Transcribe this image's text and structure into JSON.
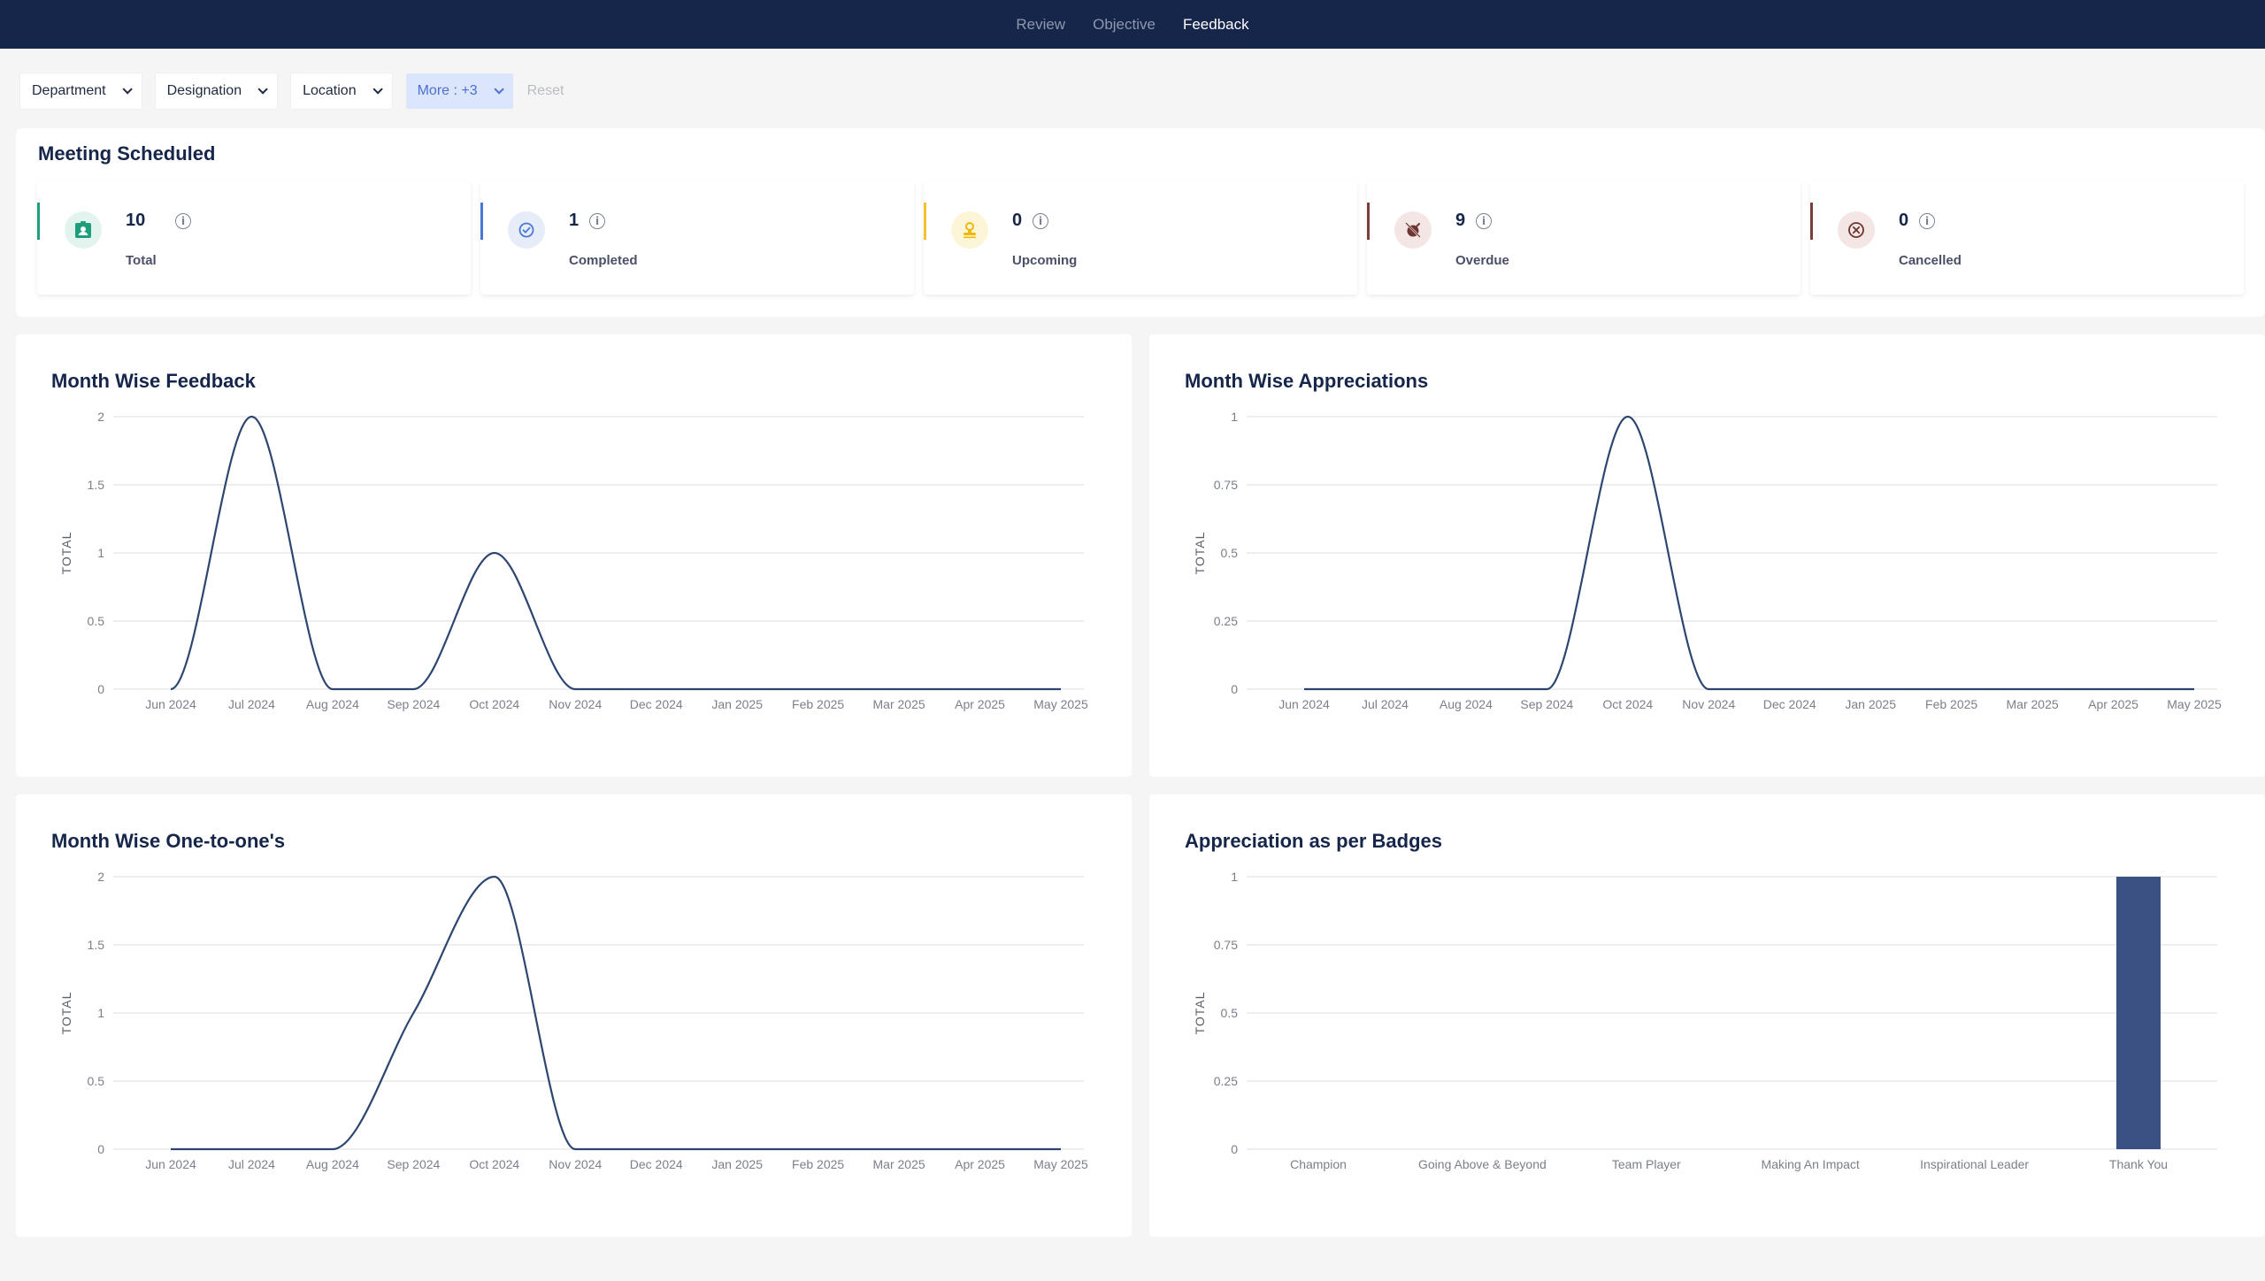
{
  "nav": {
    "tabs": [
      {
        "label": "Review"
      },
      {
        "label": "Objective"
      },
      {
        "label": "Feedback"
      }
    ],
    "active": "Feedback"
  },
  "filters": {
    "department": "Department",
    "designation": "Designation",
    "location": "Location",
    "more": "More : +3",
    "reset": "Reset"
  },
  "meeting": {
    "title": "Meeting Scheduled",
    "stats": [
      {
        "value": "10",
        "label": "Total",
        "color": "#1e9e7a",
        "icon": "user-badge-icon"
      },
      {
        "value": "1",
        "label": "Completed",
        "color": "#4a78d6",
        "icon": "check-circle-icon"
      },
      {
        "value": "0",
        "label": "Upcoming",
        "color": "#f2c230",
        "icon": "stamp-icon"
      },
      {
        "value": "9",
        "label": "Overdue",
        "color": "#7a3f3a",
        "icon": "alarm-off-icon"
      },
      {
        "value": "0",
        "label": "Cancelled",
        "color": "#7a3f3a",
        "icon": "cancel-circle-icon"
      }
    ]
  },
  "charts": {
    "feedback": {
      "title": "Month Wise Feedback"
    },
    "appreciations": {
      "title": "Month Wise Appreciations"
    },
    "one_to_one": {
      "title": "Month Wise One-to-one's"
    },
    "badges": {
      "title": "Appreciation as per Badges"
    }
  },
  "chart_data": [
    {
      "type": "line",
      "title": "Month Wise Feedback",
      "ylabel": "TOTAL",
      "x": [
        "Jun 2024",
        "Jul 2024",
        "Aug 2024",
        "Sep 2024",
        "Oct 2024",
        "Nov 2024",
        "Dec 2024",
        "Jan 2025",
        "Feb 2025",
        "Mar 2025",
        "Apr 2025",
        "May 2025"
      ],
      "y": [
        0,
        2,
        0,
        0,
        1,
        0,
        0,
        0,
        0,
        0,
        0,
        0
      ],
      "yticks": [
        "0",
        "0.5",
        "1",
        "1.5",
        "2"
      ],
      "ylim": [
        0,
        2
      ],
      "color": "#2d4670"
    },
    {
      "type": "line",
      "title": "Month Wise Appreciations",
      "ylabel": "TOTAL",
      "x": [
        "Jun 2024",
        "Jul 2024",
        "Aug 2024",
        "Sep 2024",
        "Oct 2024",
        "Nov 2024",
        "Dec 2024",
        "Jan 2025",
        "Feb 2025",
        "Mar 2025",
        "Apr 2025",
        "May 2025"
      ],
      "y": [
        0,
        0,
        0,
        0,
        1,
        0,
        0,
        0,
        0,
        0,
        0,
        0
      ],
      "yticks": [
        "0",
        "0.25",
        "0.5",
        "0.75",
        "1"
      ],
      "ylim": [
        0,
        1
      ],
      "color": "#2d4670"
    },
    {
      "type": "line",
      "title": "Month Wise One-to-one's",
      "ylabel": "TOTAL",
      "x": [
        "Jun 2024",
        "Jul 2024",
        "Aug 2024",
        "Sep 2024",
        "Oct 2024",
        "Nov 2024",
        "Dec 2024",
        "Jan 2025",
        "Feb 2025",
        "Mar 2025",
        "Apr 2025",
        "May 2025"
      ],
      "y": [
        0,
        0,
        0,
        1,
        2,
        0,
        0,
        0,
        0,
        0,
        0,
        0
      ],
      "yticks": [
        "0",
        "0.5",
        "1",
        "1.5",
        "2"
      ],
      "ylim": [
        0,
        2
      ],
      "color": "#2d4670"
    },
    {
      "type": "bar",
      "title": "Appreciation as per Badges",
      "ylabel": "TOTAL",
      "categories": [
        "Champion",
        "Going Above & Beyond",
        "Team Player",
        "Making An Impact",
        "Inspirational Leader",
        "Thank You"
      ],
      "values": [
        0,
        0,
        0,
        0,
        0,
        1
      ],
      "yticks": [
        "0",
        "0.25",
        "0.5",
        "0.75",
        "1"
      ],
      "ylim": [
        0,
        1
      ],
      "color": "#3b5184"
    }
  ]
}
